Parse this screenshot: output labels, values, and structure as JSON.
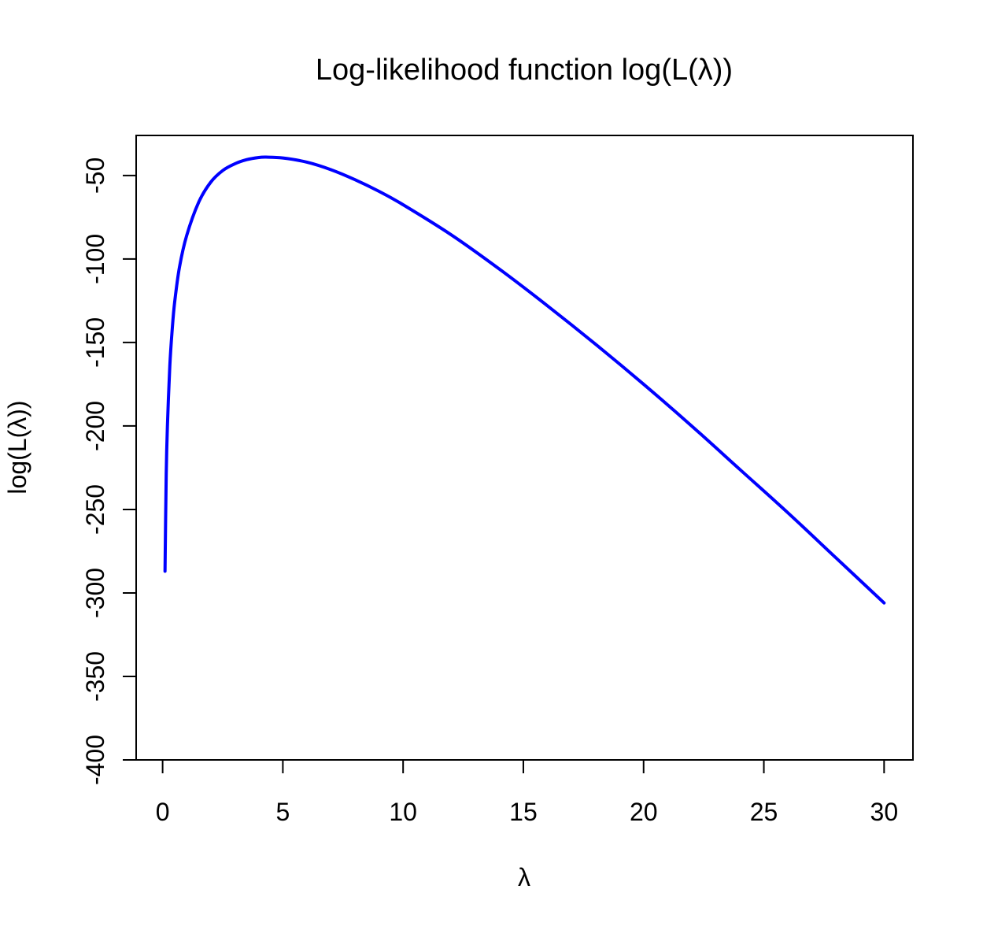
{
  "chart_data": {
    "type": "line",
    "title": "Log-likelihood function log(L(λ))",
    "xlabel": "λ",
    "ylabel": "log(L(λ))",
    "xlim": [
      -1.1,
      31.2
    ],
    "ylim": [
      -400,
      -26
    ],
    "x_ticks": [
      0,
      5,
      10,
      15,
      20,
      25,
      30
    ],
    "x_tick_labels": [
      "0",
      "5",
      "10",
      "15",
      "20",
      "25",
      "30"
    ],
    "y_ticks": [
      -400,
      -350,
      -300,
      -250,
      -200,
      -150,
      -100,
      -50
    ],
    "y_tick_labels": [
      "-400",
      "-350",
      "-300",
      "-250",
      "-200",
      "-150",
      "-100",
      "-50"
    ],
    "grid": false,
    "legend": "none",
    "series": [
      {
        "color": "#0000ff",
        "x": [
          0.1,
          0.15,
          0.2,
          0.3,
          0.4,
          0.5,
          0.7,
          1.0,
          1.5,
          2.0,
          2.5,
          3.0,
          3.5,
          4.0,
          4.3,
          5.0,
          6.0,
          7.0,
          8.0,
          9.0,
          10.0,
          12.0,
          14.0,
          16.0,
          18.0,
          20.0,
          22.0,
          24.0,
          26.0,
          28.0,
          30.0
        ],
        "y": [
          -287,
          -229,
          -200,
          -164,
          -142,
          -126,
          -105,
          -86,
          -66,
          -54,
          -47,
          -43,
          -40.5,
          -39.2,
          -39.0,
          -39.5,
          -42,
          -46.5,
          -52.5,
          -59.5,
          -67.5,
          -85.5,
          -106,
          -128,
          -151,
          -175,
          -200,
          -226,
          -252,
          -279,
          -306
        ]
      }
    ]
  }
}
